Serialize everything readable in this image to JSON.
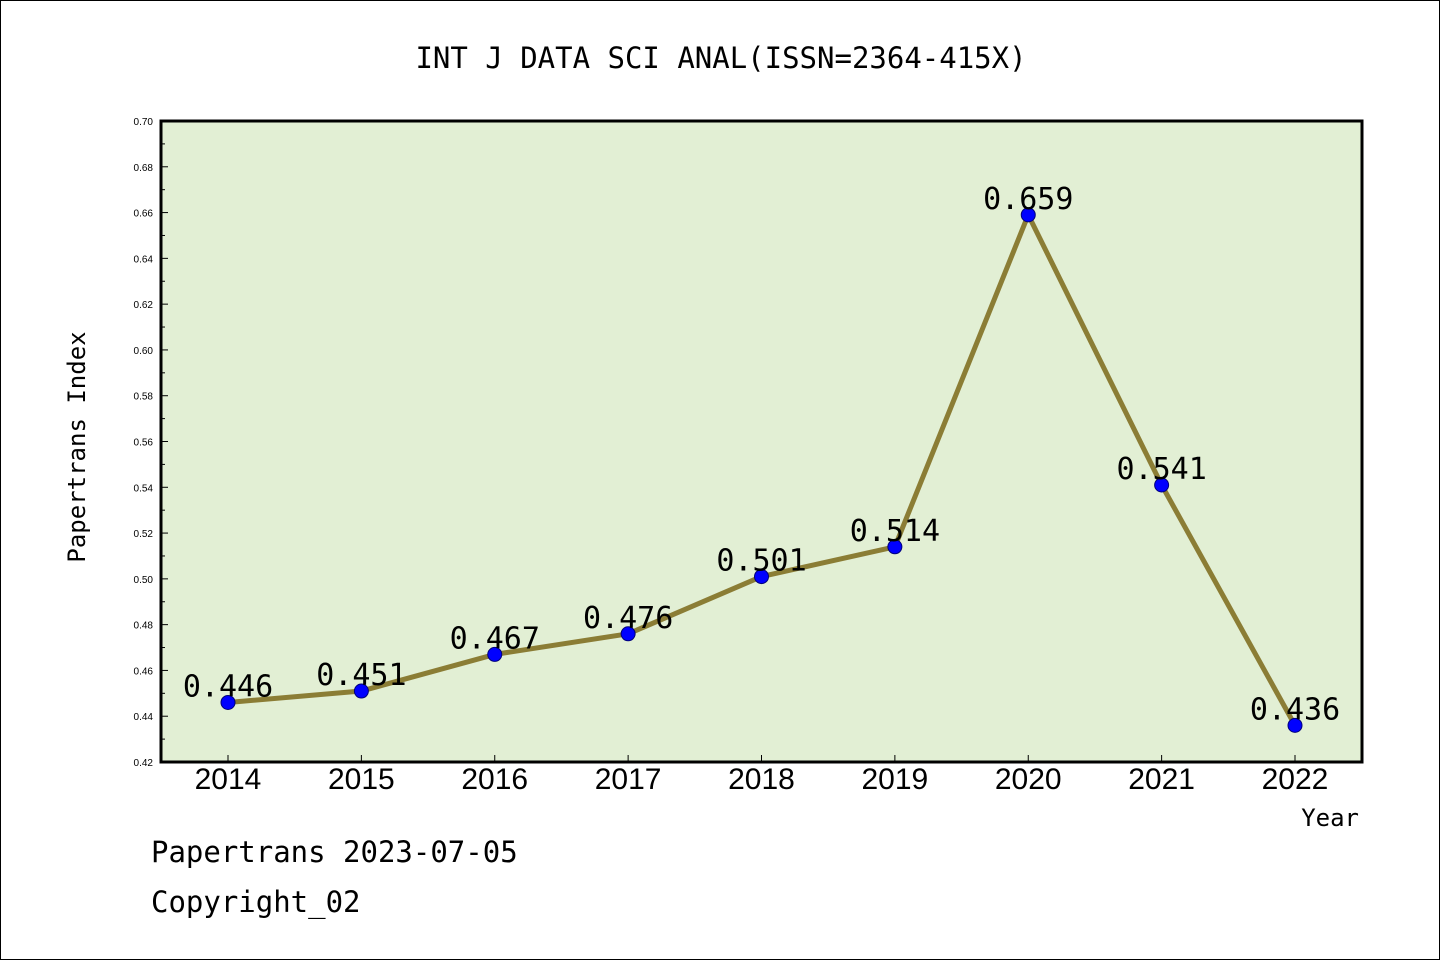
{
  "chart_data": {
    "type": "line",
    "title": "INT J DATA SCI ANAL(ISSN=2364-415X)",
    "xlabel": "Year",
    "ylabel": "Papertrans Index",
    "categories": [
      "2014",
      "2015",
      "2016",
      "2017",
      "2018",
      "2019",
      "2020",
      "2021",
      "2022"
    ],
    "values": [
      0.446,
      0.451,
      0.467,
      0.476,
      0.501,
      0.514,
      0.659,
      0.541,
      0.436
    ],
    "data_labels": [
      "0.446",
      "0.451",
      "0.467",
      "0.476",
      "0.501",
      "0.514",
      "0.659",
      "0.541",
      "0.436"
    ],
    "ylim": [
      0.42,
      0.7
    ],
    "yticks": [
      "0.42",
      "0.44",
      "0.46",
      "0.48",
      "0.50",
      "0.52",
      "0.54",
      "0.56",
      "0.58",
      "0.60",
      "0.62",
      "0.64",
      "0.66",
      "0.68",
      "0.70"
    ],
    "grid": false,
    "legend": "none",
    "colors": {
      "plot_background": "#e2efd4",
      "line": "#8b7d35",
      "marker": "#0000ff"
    }
  },
  "footer": {
    "source": "Papertrans 2023-07-05",
    "copyright": "Copyright_02"
  }
}
